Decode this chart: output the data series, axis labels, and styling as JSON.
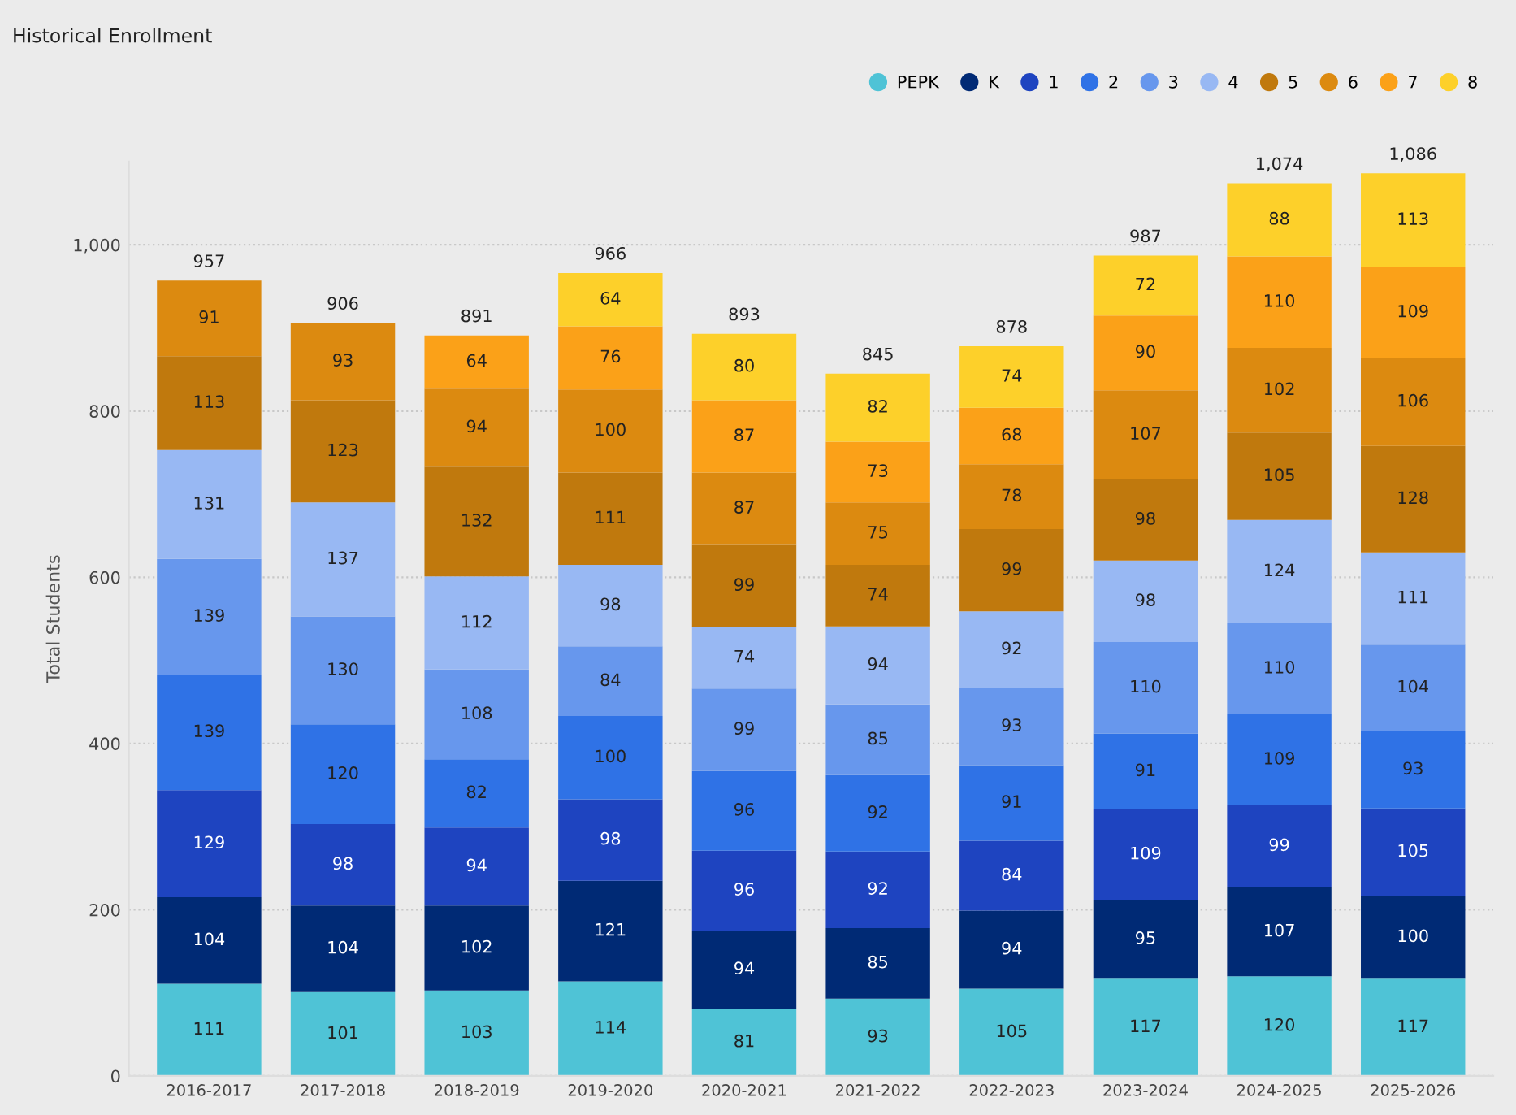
{
  "chart_data": {
    "type": "bar",
    "stacked": true,
    "title": "Historical Enrollment",
    "ylabel": "Total Students",
    "categories": [
      "2016-2017",
      "2017-2018",
      "2018-2019",
      "2019-2020",
      "2020-2021",
      "2021-2022",
      "2022-2023",
      "2023-2024",
      "2024-2025",
      "2025-2026"
    ],
    "series": [
      {
        "name": "PEPK",
        "color": "#4fc3d6",
        "values": [
          111,
          101,
          103,
          114,
          81,
          93,
          105,
          117,
          120,
          117
        ]
      },
      {
        "name": "K",
        "color": "#002a75",
        "values": [
          104,
          104,
          102,
          121,
          94,
          85,
          94,
          95,
          107,
          100
        ]
      },
      {
        "name": "1",
        "color": "#1e44c0",
        "values": [
          129,
          98,
          94,
          98,
          96,
          92,
          84,
          109,
          99,
          105
        ]
      },
      {
        "name": "2",
        "color": "#2f72e6",
        "values": [
          139,
          120,
          82,
          100,
          96,
          92,
          91,
          91,
          109,
          93
        ]
      },
      {
        "name": "3",
        "color": "#6797ed",
        "values": [
          139,
          130,
          108,
          84,
          99,
          85,
          93,
          110,
          110,
          104
        ]
      },
      {
        "name": "4",
        "color": "#98b8f3",
        "values": [
          131,
          137,
          112,
          98,
          74,
          94,
          92,
          98,
          124,
          111
        ]
      },
      {
        "name": "5",
        "color": "#c0790d",
        "values": [
          113,
          123,
          132,
          111,
          99,
          74,
          99,
          98,
          105,
          128
        ]
      },
      {
        "name": "6",
        "color": "#dc8a10",
        "values": [
          91,
          93,
          94,
          100,
          87,
          75,
          78,
          107,
          102,
          106
        ]
      },
      {
        "name": "7",
        "color": "#fba118",
        "values": [
          null,
          null,
          64,
          76,
          87,
          73,
          68,
          90,
          110,
          109
        ]
      },
      {
        "name": "8",
        "color": "#fdd02a",
        "values": [
          null,
          null,
          null,
          64,
          80,
          82,
          74,
          72,
          88,
          113
        ]
      }
    ],
    "totals": [
      "957",
      "906",
      "891",
      "966",
      "893",
      "845",
      "878",
      "987",
      "1,074",
      "1,086"
    ],
    "data_labels": true,
    "ylim": [
      0,
      1100
    ],
    "yticks": [
      0,
      200,
      400,
      600,
      800,
      {
        "value": 1000,
        "label": "1,000"
      }
    ],
    "grid": "y",
    "legend": "top right"
  }
}
